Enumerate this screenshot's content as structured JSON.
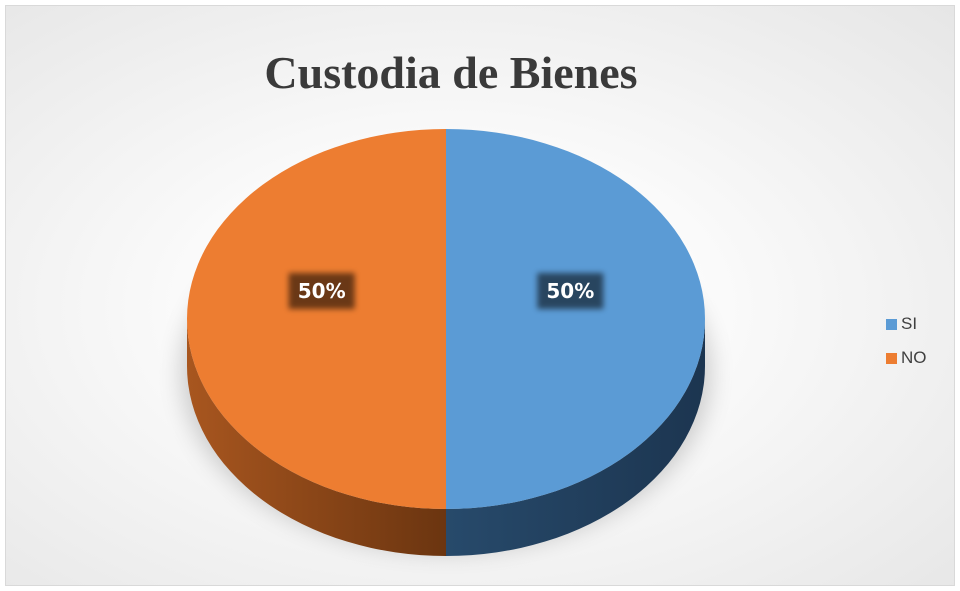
{
  "chart_data": {
    "type": "pie",
    "title": "Custodia de Bienes",
    "categories": [
      "SI",
      "NO"
    ],
    "values": [
      50,
      50
    ],
    "data_labels": [
      "50%",
      "50%"
    ],
    "colors": [
      "#5b9bd5",
      "#ed7d31"
    ],
    "legend_position": "right",
    "style": "3d"
  },
  "legend": {
    "items": [
      {
        "label": "SI",
        "color": "#5b9bd5"
      },
      {
        "label": "NO",
        "color": "#ed7d31"
      }
    ]
  }
}
